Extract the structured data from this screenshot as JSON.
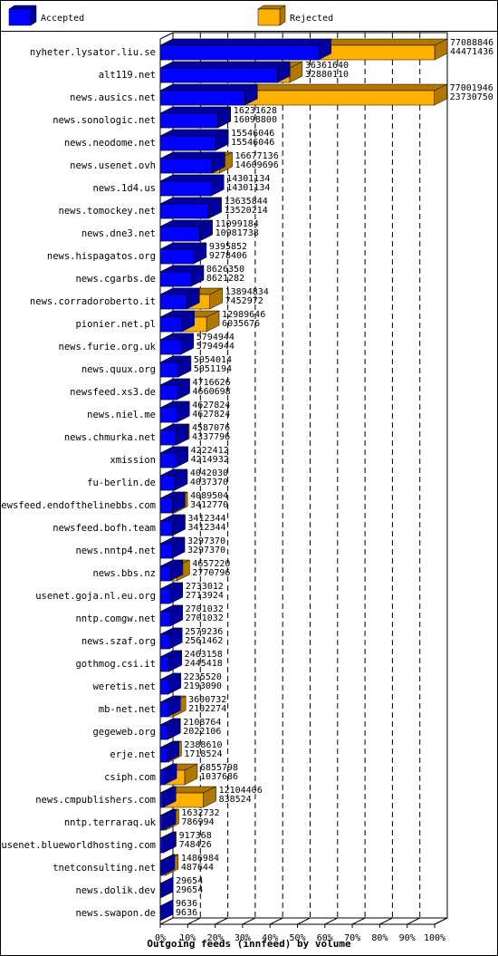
{
  "chart_data": {
    "type": "bar3d",
    "orientation": "horizontal",
    "xlabel": "Outgoing feeds (innfeed) by volume",
    "categories": [
      "nyheter.lysator.liu.se",
      "alt119.net",
      "news.ausics.net",
      "news.sonologic.net",
      "news.neodome.net",
      "news.usenet.ovh",
      "news.1d4.us",
      "news.tomockey.net",
      "news.dne3.net",
      "news.hispagatos.org",
      "news.cgarbs.de",
      "news.corradoroberto.it",
      "pionier.net.pl",
      "news.furie.org.uk",
      "news.quux.org",
      "newsfeed.xs3.de",
      "news.niel.me",
      "news.chmurka.net",
      "xmission",
      "fu-berlin.de",
      "newsfeed.endofthelinebbs.com",
      "newsfeed.bofh.team",
      "news.nntp4.net",
      "news.bbs.nz",
      "usenet.goja.nl.eu.org",
      "nntp.comgw.net",
      "news.szaf.org",
      "gothmog.csi.it",
      "weretis.net",
      "mb-net.net",
      "gegeweb.org",
      "erje.net",
      "csiph.com",
      "news.cmpublishers.com",
      "nntp.terraraq.uk",
      "usenet.blueworldhosting.com",
      "tnetconsulting.net",
      "news.dolik.dev",
      "news.swapon.de"
    ],
    "series": [
      {
        "name": "Accepted",
        "color": "#0000ff",
        "values": [
          44471436,
          32880110,
          23730750,
          16098800,
          15546046,
          14609696,
          14301134,
          13520214,
          10981738,
          9278406,
          8621282,
          7452972,
          6035676,
          5794944,
          5051194,
          4660698,
          4627824,
          4337796,
          4214932,
          4037370,
          3412770,
          3412344,
          3297370,
          2770796,
          2713924,
          2701032,
          2561462,
          2445418,
          2193090,
          2102274,
          2022106,
          1718524,
          1037686,
          838524,
          786994,
          748426,
          487644,
          29654,
          9636
        ]
      },
      {
        "name": "Rejected",
        "color": "#ffb000",
        "values": [
          77088846,
          36361640,
          77001946,
          16231628,
          15546046,
          16677136,
          14301134,
          13635844,
          11099184,
          9395852,
          8626350,
          13894834,
          12989646,
          5794944,
          5054014,
          4716626,
          4627824,
          4587076,
          4222412,
          4042030,
          4089504,
          3412344,
          3297370,
          4657220,
          2733012,
          2701032,
          2579236,
          2463158,
          2235520,
          3600732,
          2108764,
          2388610,
          6855798,
          12104406,
          1632732,
          917368,
          1486984,
          29654,
          9636
        ]
      }
    ],
    "xlim": [
      0,
      77088846
    ],
    "xticks": [
      {
        "value": 0,
        "label": "0%"
      },
      {
        "value": 7708884.6,
        "label": "10%"
      },
      {
        "value": 15417769.2,
        "label": "20%"
      },
      {
        "value": 23126653.8,
        "label": "30%"
      },
      {
        "value": 30835538.4,
        "label": "40%"
      },
      {
        "value": 38544423,
        "label": "50%"
      },
      {
        "value": 46253307.6,
        "label": "60%"
      },
      {
        "value": 53962192.2,
        "label": "70%"
      },
      {
        "value": 61671076.8,
        "label": "80%"
      },
      {
        "value": 69379961.4,
        "label": "90%"
      },
      {
        "value": 77088846,
        "label": "100%"
      }
    ],
    "grid": true
  }
}
